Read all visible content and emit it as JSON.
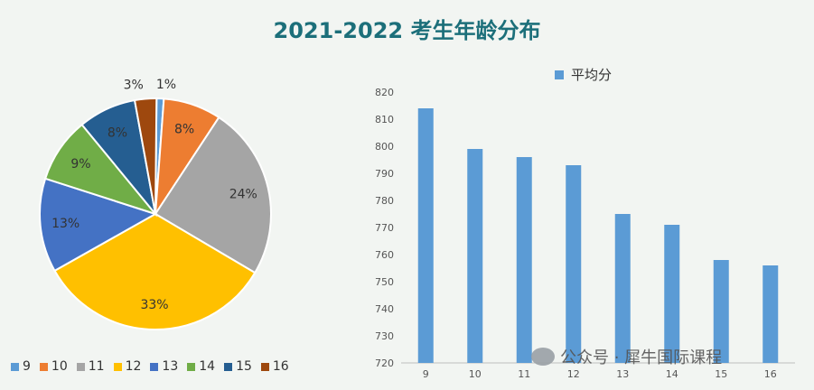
{
  "title": "2021-2022 考生年龄分布",
  "chart_data": [
    {
      "type": "pie",
      "categories": [
        "9",
        "10",
        "11",
        "12",
        "13",
        "14",
        "15",
        "16"
      ],
      "values": [
        1,
        8,
        24,
        33,
        13,
        9,
        8,
        3
      ],
      "labels": [
        "1%",
        "8%",
        "24%",
        "33%",
        "13%",
        "9%",
        "8%",
        "3%"
      ],
      "colors": [
        "#5b9bd5",
        "#ed7d31",
        "#a5a5a5",
        "#ffc000",
        "#4472c4",
        "#70ad47",
        "#255e91",
        "#9e480e"
      ],
      "legend": "bottom"
    },
    {
      "type": "bar",
      "categories": [
        "9",
        "10",
        "11",
        "12",
        "13",
        "14",
        "15",
        "16"
      ],
      "series": [
        {
          "name": "平均分",
          "values": [
            814,
            799,
            796,
            793,
            775,
            771,
            758,
            756
          ]
        }
      ],
      "ylim": [
        720,
        820
      ],
      "yticks": [
        "720",
        "730",
        "740",
        "750",
        "760",
        "770",
        "780",
        "790",
        "800",
        "810",
        "820"
      ],
      "color": "#5b9bd5",
      "grid": false,
      "legend": "top"
    }
  ],
  "watermark": "公众号 · 犀牛国际课程"
}
